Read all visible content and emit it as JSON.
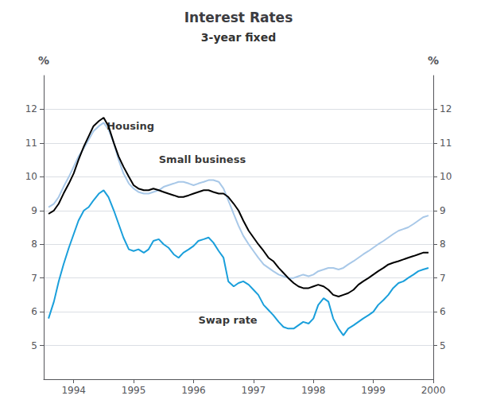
{
  "chart_data": {
    "type": "line",
    "title": "Interest Rates",
    "subtitle": "3-year fixed",
    "ylabel": "%",
    "y2label": "%",
    "x": [
      1993.58,
      1993.67,
      1993.75,
      1993.83,
      1993.92,
      1994.0,
      1994.08,
      1994.17,
      1994.25,
      1994.33,
      1994.42,
      1994.5,
      1994.58,
      1994.67,
      1994.75,
      1994.83,
      1994.92,
      1995.0,
      1995.08,
      1995.17,
      1995.25,
      1995.33,
      1995.42,
      1995.5,
      1995.58,
      1995.67,
      1995.75,
      1995.83,
      1995.92,
      1996.0,
      1996.08,
      1996.17,
      1996.25,
      1996.33,
      1996.42,
      1996.5,
      1996.58,
      1996.67,
      1996.75,
      1996.83,
      1996.92,
      1997.0,
      1997.08,
      1997.17,
      1997.25,
      1997.33,
      1997.42,
      1997.5,
      1997.58,
      1997.67,
      1997.75,
      1997.83,
      1997.92,
      1998.0,
      1998.08,
      1998.17,
      1998.25,
      1998.33,
      1998.42,
      1998.5,
      1998.58,
      1998.67,
      1998.75,
      1998.83,
      1998.92,
      1999.0,
      1999.08,
      1999.17,
      1999.25,
      1999.33,
      1999.42,
      1999.5,
      1999.58,
      1999.67,
      1999.75,
      1999.83,
      1999.92
    ],
    "xlim": [
      1993.5,
      2000.0
    ],
    "xticks": [
      1994,
      1995,
      1996,
      1997,
      1998,
      1999,
      2000
    ],
    "ylim": [
      4,
      13
    ],
    "yticks": [
      5,
      6,
      7,
      8,
      9,
      10,
      11,
      12
    ],
    "y2lim": [
      4,
      13
    ],
    "y2ticks": [
      5,
      6,
      7,
      8,
      9,
      10,
      11,
      12
    ],
    "grid": true,
    "series": [
      {
        "name": "Small business",
        "color": "#a8c8e8",
        "values": [
          9.1,
          9.2,
          9.4,
          9.7,
          10.0,
          10.3,
          10.6,
          10.85,
          11.1,
          11.35,
          11.5,
          11.6,
          11.4,
          11.0,
          10.5,
          10.1,
          9.8,
          9.65,
          9.55,
          9.5,
          9.5,
          9.55,
          9.6,
          9.7,
          9.75,
          9.8,
          9.85,
          9.85,
          9.8,
          9.75,
          9.8,
          9.85,
          9.9,
          9.9,
          9.85,
          9.65,
          9.3,
          8.9,
          8.55,
          8.25,
          8.0,
          7.8,
          7.6,
          7.4,
          7.3,
          7.2,
          7.1,
          7.05,
          7.0,
          7.0,
          7.05,
          7.1,
          7.05,
          7.1,
          7.2,
          7.25,
          7.3,
          7.3,
          7.25,
          7.3,
          7.4,
          7.5,
          7.6,
          7.7,
          7.8,
          7.9,
          8.0,
          8.1,
          8.2,
          8.3,
          8.4,
          8.45,
          8.5,
          8.6,
          8.7,
          8.8,
          8.85
        ]
      },
      {
        "name": "Housing",
        "color": "#000000",
        "values": [
          8.9,
          9.0,
          9.2,
          9.5,
          9.8,
          10.1,
          10.5,
          10.9,
          11.2,
          11.5,
          11.65,
          11.75,
          11.5,
          11.0,
          10.6,
          10.3,
          10.0,
          9.75,
          9.65,
          9.6,
          9.6,
          9.65,
          9.6,
          9.55,
          9.5,
          9.45,
          9.4,
          9.4,
          9.45,
          9.5,
          9.55,
          9.6,
          9.6,
          9.55,
          9.5,
          9.5,
          9.4,
          9.2,
          9.0,
          8.7,
          8.4,
          8.2,
          8.0,
          7.8,
          7.6,
          7.5,
          7.3,
          7.15,
          7.0,
          6.85,
          6.75,
          6.7,
          6.7,
          6.75,
          6.8,
          6.75,
          6.65,
          6.5,
          6.45,
          6.5,
          6.55,
          6.65,
          6.8,
          6.9,
          7.0,
          7.1,
          7.2,
          7.3,
          7.4,
          7.45,
          7.5,
          7.55,
          7.6,
          7.65,
          7.7,
          7.75,
          7.75
        ]
      },
      {
        "name": "Swap rate",
        "color": "#1a9fdb",
        "values": [
          5.8,
          6.3,
          6.9,
          7.4,
          7.9,
          8.3,
          8.7,
          9.0,
          9.1,
          9.3,
          9.5,
          9.6,
          9.4,
          9.0,
          8.6,
          8.2,
          7.85,
          7.8,
          7.85,
          7.75,
          7.85,
          8.1,
          8.15,
          8.0,
          7.9,
          7.7,
          7.6,
          7.75,
          7.85,
          7.95,
          8.1,
          8.15,
          8.2,
          8.05,
          7.8,
          7.6,
          6.9,
          6.75,
          6.85,
          6.9,
          6.8,
          6.65,
          6.5,
          6.2,
          6.05,
          5.9,
          5.7,
          5.55,
          5.5,
          5.5,
          5.6,
          5.7,
          5.65,
          5.8,
          6.2,
          6.4,
          6.3,
          5.8,
          5.5,
          5.3,
          5.5,
          5.6,
          5.7,
          5.8,
          5.9,
          6.0,
          6.2,
          6.35,
          6.5,
          6.7,
          6.85,
          6.9,
          7.0,
          7.1,
          7.2,
          7.25,
          7.3
        ]
      }
    ],
    "annotations": [
      {
        "text": "Housing",
        "x": 1994.55,
        "y": 11.35
      },
      {
        "text": "Small business",
        "x": 1995.42,
        "y": 10.35
      },
      {
        "text": "Swap rate",
        "x": 1996.08,
        "y": 5.6
      }
    ]
  }
}
